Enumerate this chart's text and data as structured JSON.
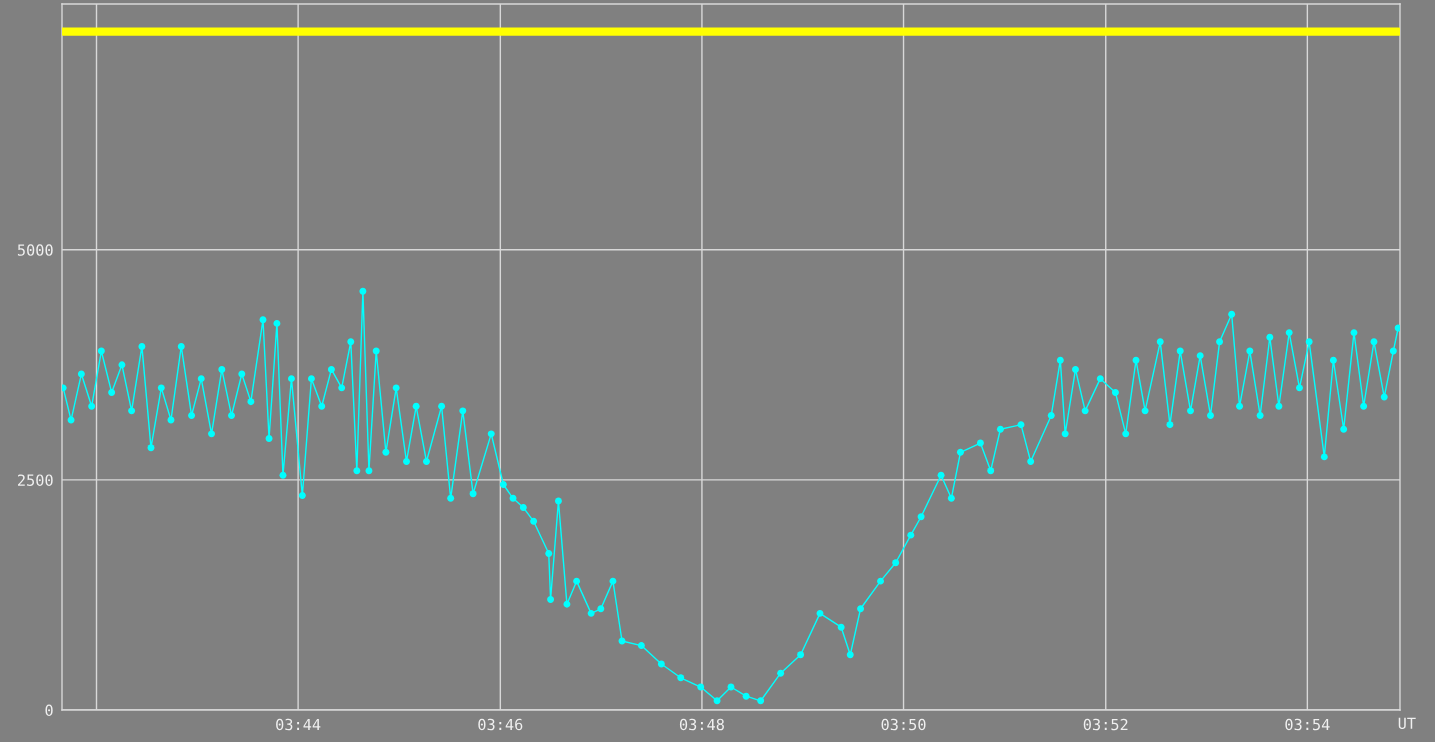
{
  "chart_data": {
    "type": "line",
    "xlabel": "UT",
    "xlim": [
      3.6943,
      3.9153
    ],
    "xticks": [
      {
        "value": 3.7,
        "label": null
      },
      {
        "value": 3.7333,
        "label": "03:44"
      },
      {
        "value": 3.7667,
        "label": "03:46"
      },
      {
        "value": 3.8,
        "label": "03:48"
      },
      {
        "value": 3.8333,
        "label": "03:50"
      },
      {
        "value": 3.8667,
        "label": "03:52"
      },
      {
        "value": 3.9,
        "label": "03:54"
      }
    ],
    "ylim": [
      0,
      7670
    ],
    "yticks": [
      0,
      2500,
      5000
    ],
    "grid": true,
    "legend": false,
    "series": [
      {
        "color": "#ffff00",
        "marker": "none",
        "x": [
          3.6945,
          3.915
        ],
        "values": [
          7370,
          7370
        ]
      },
      {
        "color": "#00ffff",
        "marker": "circle",
        "x": [
          3.6945,
          3.6958,
          3.6975,
          3.6992,
          3.7008,
          3.7025,
          3.7042,
          3.7058,
          3.7075,
          3.709,
          3.7107,
          3.7123,
          3.714,
          3.7157,
          3.7173,
          3.719,
          3.7207,
          3.7223,
          3.724,
          3.7255,
          3.7275,
          3.7285,
          3.7298,
          3.7308,
          3.7322,
          3.734,
          3.7355,
          3.7372,
          3.7388,
          3.7405,
          3.742,
          3.743,
          3.744,
          3.745,
          3.7462,
          3.7478,
          3.7495,
          3.7512,
          3.7528,
          3.7545,
          3.757,
          3.7585,
          3.7605,
          3.7622,
          3.7652,
          3.7672,
          3.7688,
          3.7705,
          3.7722,
          3.7747,
          3.775,
          3.7763,
          3.7777,
          3.7793,
          3.7817,
          3.7833,
          3.7853,
          3.7868,
          3.79,
          3.7933,
          3.7965,
          3.7998,
          3.8025,
          3.8048,
          3.8073,
          3.8097,
          3.813,
          3.8163,
          3.8195,
          3.823,
          3.8245,
          3.8262,
          3.8295,
          3.832,
          3.8345,
          3.8362,
          3.8395,
          3.8412,
          3.8427,
          3.846,
          3.8477,
          3.8493,
          3.8527,
          3.8543,
          3.8577,
          3.8592,
          3.86,
          3.8617,
          3.8633,
          3.8658,
          3.8683,
          3.87,
          3.8717,
          3.8732,
          3.8757,
          3.8773,
          3.879,
          3.8807,
          3.8823,
          3.884,
          3.8855,
          3.8875,
          3.8888,
          3.8905,
          3.8922,
          3.8938,
          3.8953,
          3.897,
          3.8987,
          3.9003,
          3.9028,
          3.9043,
          3.906,
          3.9077,
          3.9093,
          3.911,
          3.9127,
          3.9142,
          3.915
        ],
        "values": [
          3500,
          3150,
          3650,
          3300,
          3900,
          3450,
          3750,
          3250,
          3950,
          2850,
          3500,
          3150,
          3950,
          3200,
          3600,
          3000,
          3700,
          3200,
          3650,
          3350,
          4240,
          2950,
          4200,
          2550,
          3600,
          2330,
          3600,
          3300,
          3700,
          3500,
          4000,
          2600,
          4550,
          2600,
          3900,
          2800,
          3500,
          2700,
          3300,
          2700,
          3300,
          2300,
          3250,
          2350,
          3000,
          2450,
          2300,
          2200,
          2050,
          1700,
          1200,
          2270,
          1150,
          1400,
          1050,
          1100,
          1400,
          750,
          700,
          500,
          350,
          250,
          100,
          250,
          150,
          100,
          400,
          600,
          1050,
          900,
          600,
          1100,
          1400,
          1600,
          1900,
          2100,
          2550,
          2300,
          2800,
          2900,
          2600,
          3050,
          3100,
          2700,
          3200,
          3800,
          3000,
          3700,
          3250,
          3600,
          3450,
          3000,
          3800,
          3250,
          4000,
          3100,
          3900,
          3250,
          3850,
          3200,
          4000,
          4300,
          3300,
          3900,
          3200,
          4050,
          3300,
          4100,
          3500,
          4000,
          2750,
          3800,
          3050,
          4100,
          3300,
          4000,
          3400,
          3900,
          4150
        ]
      }
    ]
  }
}
